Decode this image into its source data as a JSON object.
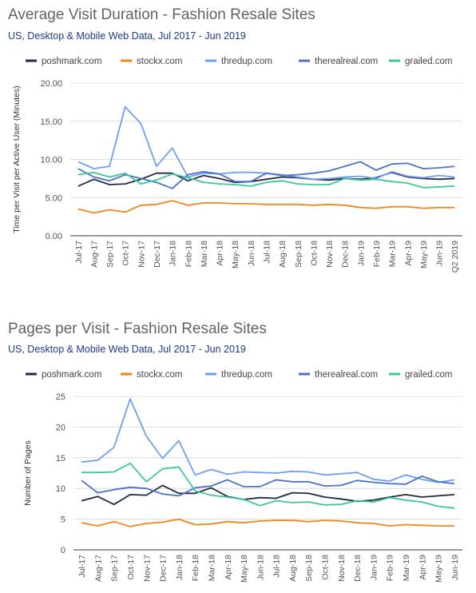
{
  "series_meta": [
    {
      "name": "poshmark.com",
      "color": "#1f2a44"
    },
    {
      "name": "stockx.com",
      "color": "#f0861a"
    },
    {
      "name": "thredup.com",
      "color": "#6e9ff2"
    },
    {
      "name": "therealreal.com",
      "color": "#4a72c9"
    },
    {
      "name": "grailed.com",
      "color": "#3ec79a"
    }
  ],
  "chart_data": [
    {
      "type": "line",
      "title": "Average Visit Duration - Fashion Resale Sites",
      "subtitle": "US, Desktop & Mobile Web Data, Jul 2017 - Jun 2019",
      "ylabel": "Time per Visit per Active User (Minutes)",
      "xlabel": "",
      "ylim": [
        0,
        20
      ],
      "yticks": [
        "0.00",
        "5.00",
        "10.00",
        "15.00",
        "20.00"
      ],
      "grid": true,
      "legend": "top",
      "categories": [
        "Jul-17",
        "Aug-17",
        "Sep-17",
        "Oct-17",
        "Nov-17",
        "Dec-17",
        "Jan-18",
        "Feb-18",
        "Mar-18",
        "Apr-18",
        "May-18",
        "Jun-18",
        "Jul-18",
        "Aug-18",
        "Sep-18",
        "Oct-18",
        "Nov-18",
        "Dec-18",
        "Jan-19",
        "Feb-19",
        "Mar-19",
        "Apr-19",
        "May-19",
        "Jun-19",
        "Q2 2019"
      ],
      "series": [
        {
          "name": "poshmark.com",
          "values": [
            6.5,
            7.4,
            6.7,
            6.8,
            7.4,
            8.2,
            8.2,
            7.2,
            7.9,
            7.5,
            7.0,
            7.1,
            7.4,
            7.7,
            7.6,
            7.4,
            7.3,
            7.5,
            7.4,
            7.6,
            8.3,
            7.7,
            7.5,
            7.4,
            7.5
          ]
        },
        {
          "name": "stockx.com",
          "values": [
            3.5,
            3.0,
            3.4,
            3.1,
            4.0,
            4.1,
            4.6,
            4.0,
            4.3,
            4.3,
            4.2,
            4.2,
            4.1,
            4.1,
            4.1,
            4.0,
            4.1,
            4.0,
            3.7,
            3.6,
            3.8,
            3.8,
            3.6,
            3.7,
            3.7
          ]
        },
        {
          "name": "thredup.com",
          "values": [
            9.7,
            8.8,
            9.1,
            16.9,
            14.7,
            9.1,
            11.5,
            7.7,
            8.2,
            8.1,
            8.3,
            8.3,
            8.2,
            8.0,
            7.7,
            7.4,
            7.5,
            7.7,
            7.8,
            7.5,
            8.4,
            7.8,
            7.6,
            7.9,
            7.7
          ]
        },
        {
          "name": "therealreal.com",
          "values": [
            8.8,
            7.7,
            7.2,
            8.0,
            7.5,
            7.0,
            6.2,
            8.0,
            8.4,
            8.1,
            7.1,
            7.1,
            8.2,
            7.9,
            8.0,
            8.2,
            8.5,
            9.1,
            9.7,
            8.6,
            9.4,
            9.5,
            8.8,
            8.9,
            9.1
          ]
        },
        {
          "name": "grailed.com",
          "values": [
            8.0,
            8.3,
            7.7,
            8.2,
            6.8,
            7.3,
            8.1,
            7.6,
            7.0,
            6.8,
            6.7,
            6.5,
            7.0,
            7.2,
            6.8,
            6.7,
            6.7,
            7.5,
            7.3,
            7.4,
            7.1,
            6.9,
            6.3,
            6.4,
            6.5
          ]
        }
      ]
    },
    {
      "type": "line",
      "title": "Pages per Visit - Fashion Resale Sites",
      "subtitle": "US, Desktop & Mobile Web Data, Jul 2017 - Jun 2019",
      "ylabel": "Number of Pages",
      "xlabel": "",
      "ylim": [
        0,
        25
      ],
      "yticks": [
        "0",
        "5",
        "10",
        "15",
        "20",
        "25"
      ],
      "grid": true,
      "legend": "top",
      "categories": [
        "Jul-17",
        "Aug-17",
        "Sep-17",
        "Oct-17",
        "Nov-17",
        "Dec-17",
        "Jan-18",
        "Feb-18",
        "Mar-18",
        "Apr-18",
        "May-18",
        "Jun-18",
        "Jul-18",
        "Aug-18",
        "Sep-18",
        "Oct-18",
        "Nov-18",
        "Dec-18",
        "Jan-19",
        "Feb-19",
        "Mar-19",
        "Apr-19",
        "May-19",
        "Jun-19"
      ],
      "series": [
        {
          "name": "poshmark.com",
          "values": [
            8.0,
            8.7,
            7.4,
            9.0,
            8.9,
            10.5,
            9.2,
            9.2,
            10.1,
            8.7,
            8.2,
            8.5,
            8.4,
            9.3,
            9.2,
            8.6,
            8.3,
            7.9,
            8.1,
            8.6,
            9.0,
            8.6,
            8.8,
            9.0
          ]
        },
        {
          "name": "stockx.com",
          "values": [
            4.4,
            3.9,
            4.6,
            3.8,
            4.3,
            4.5,
            5.0,
            4.1,
            4.2,
            4.6,
            4.4,
            4.7,
            4.8,
            4.8,
            4.6,
            4.8,
            4.7,
            4.4,
            4.3,
            3.9,
            4.1,
            4.0,
            3.9,
            3.9
          ]
        },
        {
          "name": "thredup.com",
          "values": [
            14.3,
            14.6,
            16.7,
            24.6,
            18.5,
            14.9,
            17.8,
            12.2,
            13.1,
            12.3,
            12.7,
            12.6,
            12.5,
            12.8,
            12.7,
            12.2,
            12.4,
            12.6,
            11.5,
            11.2,
            12.2,
            11.5,
            11.0,
            11.4
          ]
        },
        {
          "name": "therealreal.com",
          "values": [
            11.3,
            9.3,
            9.8,
            10.2,
            10.0,
            9.1,
            8.8,
            10.1,
            10.4,
            11.4,
            10.3,
            10.3,
            11.4,
            11.1,
            11.1,
            10.4,
            10.5,
            11.3,
            11.0,
            10.8,
            10.7,
            12.0,
            11.1,
            10.8
          ]
        },
        {
          "name": "grailed.com",
          "values": [
            12.6,
            12.6,
            12.7,
            14.1,
            11.1,
            13.2,
            13.5,
            9.6,
            8.9,
            8.6,
            8.2,
            7.2,
            8.0,
            7.7,
            7.8,
            7.3,
            7.4,
            8.0,
            7.8,
            8.5,
            8.1,
            7.8,
            7.1,
            6.8
          ]
        }
      ]
    }
  ]
}
